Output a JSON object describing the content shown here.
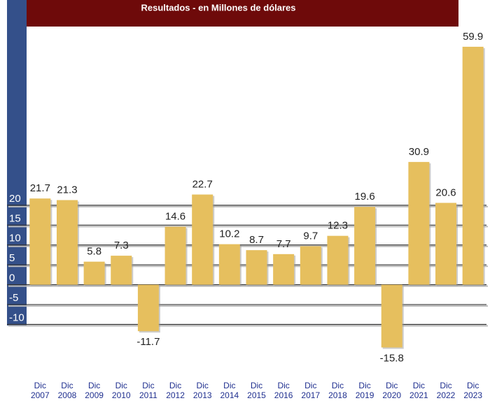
{
  "chart_data": {
    "type": "bar",
    "title": "Resultados - en Millones de dólares",
    "categories": [
      "Dic 2007",
      "Dic 2008",
      "Dic 2009",
      "Dic 2010",
      "Dic 2011",
      "Dic 2012",
      "Dic 2013",
      "Dic 2014",
      "Dic 2015",
      "Dic 2016",
      "Dic 2017",
      "Dic 2018",
      "Dic 2019",
      "Dic 2020",
      "Dic 2021",
      "Dic 2022",
      "Dic 2023"
    ],
    "values": [
      21.7,
      21.3,
      5.8,
      7.3,
      -11.7,
      14.6,
      22.7,
      10.2,
      8.7,
      7.7,
      9.7,
      12.3,
      19.6,
      -15.8,
      30.9,
      20.6,
      59.9
    ],
    "color": "#e6bf5e",
    "ylim": [
      -18,
      62
    ],
    "yticks": [
      20,
      15,
      10,
      5,
      0,
      -5,
      -10
    ],
    "grid": true
  }
}
